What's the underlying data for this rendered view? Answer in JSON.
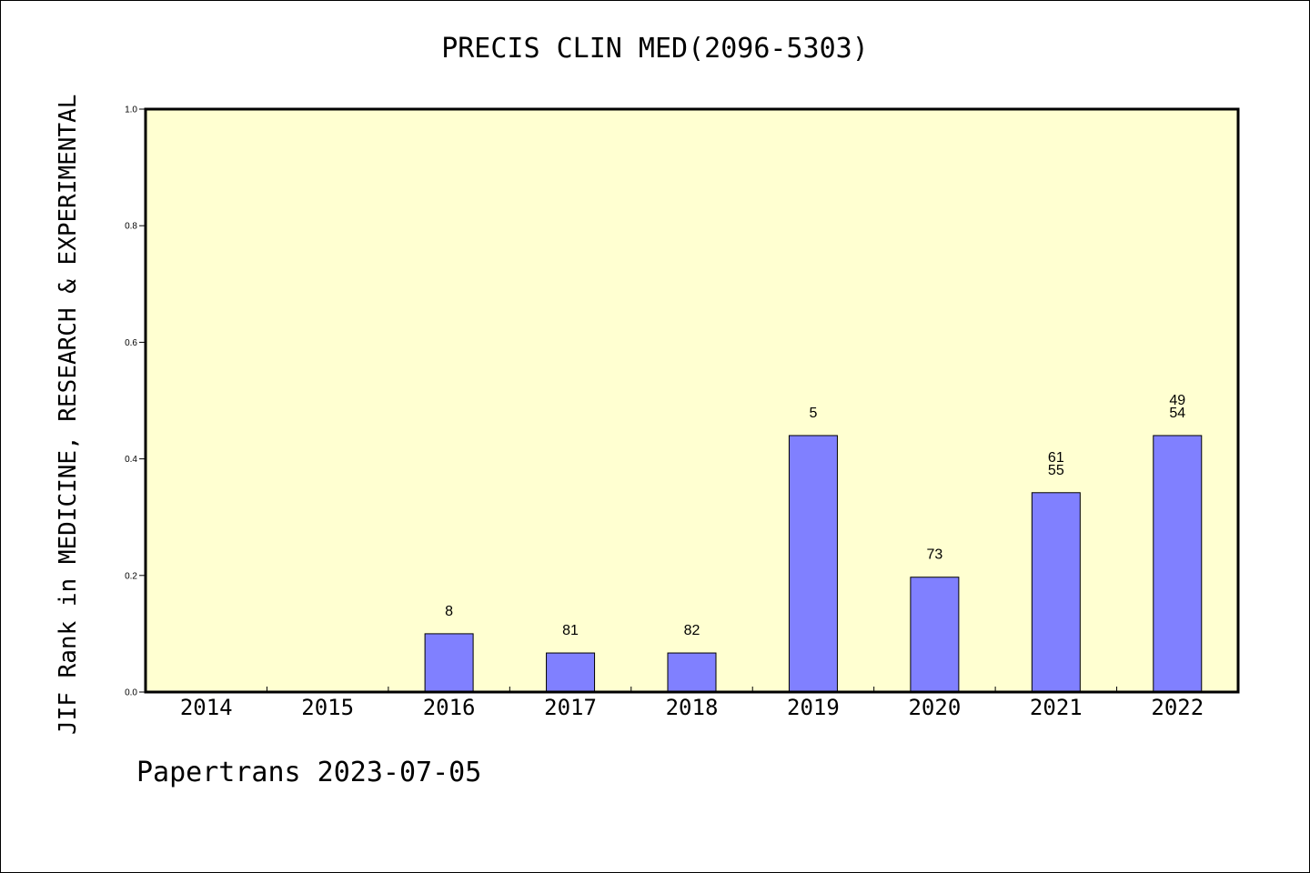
{
  "chart_data": {
    "type": "bar",
    "title": "PRECIS CLIN MED(2096-5303)",
    "ylabel": "JIF Rank in MEDICINE, RESEARCH & EXPERIMENTAL",
    "xlabel": "",
    "footer": "Papertrans 2023-07-05",
    "ylim": [
      0,
      1.0
    ],
    "yticks": [
      "0.0",
      "0.2",
      "0.4",
      "0.6",
      "0.8",
      "1.0"
    ],
    "categories": [
      "2014",
      "2015",
      "2016",
      "2017",
      "2018",
      "2019",
      "2020",
      "2021",
      "2022"
    ],
    "values": [
      0,
      0,
      0.1,
      0.067,
      0.067,
      0.44,
      0.197,
      0.342,
      0.44
    ],
    "bar_labels": [
      [],
      [],
      [
        "8"
      ],
      [
        "81"
      ],
      [
        "82"
      ],
      [
        "5"
      ],
      [
        "73"
      ],
      [
        "61",
        "55"
      ],
      [
        "49",
        "54"
      ]
    ],
    "colors": {
      "plot_bg": "#FFFFD1",
      "bar": "#8080FF",
      "border": "#000000"
    },
    "grid": false
  }
}
